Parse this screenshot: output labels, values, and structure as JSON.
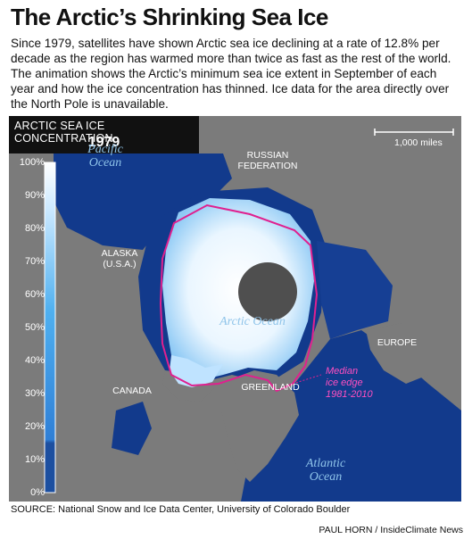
{
  "title": "The Arctic’s Shrinking Sea Ice",
  "intro": "Since 1979, satellites have shown Arctic sea ice declining at a rate of 12.8% per decade as the region has warmed more than twice as fast as the rest of the world. The animation shows the Arctic’s minimum sea ice extent in September of each year and how the ice concentration has thinned. Ice data for the area directly over the North Pole is unavailable.",
  "map": {
    "header": {
      "title": "ARCTIC SEA ICE CONCENTRATION",
      "year": "1979"
    },
    "scale_bar": {
      "label": "1,000 miles"
    },
    "legend": {
      "ticks": [
        "100%",
        "90%",
        "80%",
        "70%",
        "60%",
        "50%",
        "40%",
        "30%",
        "20%",
        "10%",
        "0%"
      ],
      "colors": {
        "low": "#1c4fa0",
        "mid": "#3d9ee8",
        "high": "#ffffff"
      }
    },
    "labels": {
      "russia": "RUSSIAN FEDERATION",
      "alaska": "ALASKA (U.S.A.)",
      "canada": "CANADA",
      "greenland": "GREENLAND",
      "europe": "EUROPE"
    },
    "oceans": {
      "pacific": "Pacific Ocean",
      "arctic": "Arctic Ocean",
      "atlantic": "Atlantic Ocean"
    },
    "median_edge": {
      "label_1": "Median",
      "label_2": "ice edge",
      "label_3": "1981-2010",
      "color": "#e0208f"
    },
    "colors": {
      "land": "#7b7b7b",
      "ocean": "#123a8c",
      "pole_hole": "#4f4f4f"
    }
  },
  "source": "SOURCE: National Snow and Ice Data Center, University of Colorado Boulder",
  "credit": "PAUL HORN / InsideClimate News"
}
